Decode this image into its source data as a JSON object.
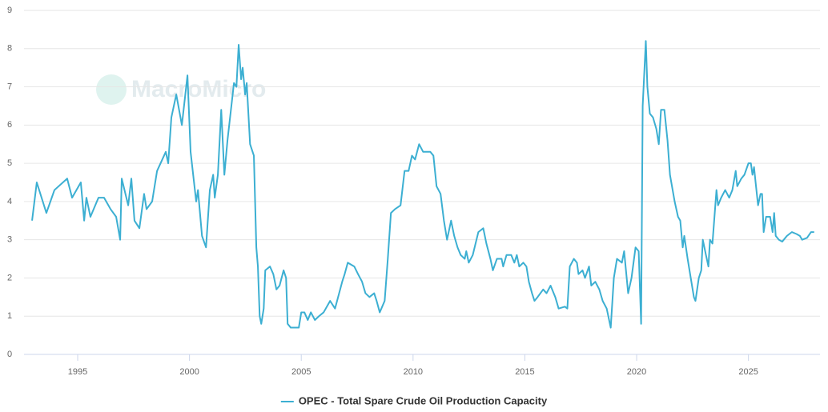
{
  "chart_data": {
    "type": "line",
    "watermark": "MacroMicro",
    "x": [
      1992.96,
      1993.17,
      1993.6,
      1993.78,
      1993.96,
      1994.53,
      1994.75,
      1995.14,
      1995.29,
      1995.39,
      1995.57,
      1995.93,
      1996.18,
      1996.47,
      1996.72,
      1996.9,
      1996.97,
      1997.26,
      1997.4,
      1997.54,
      1997.76,
      1997.97,
      1998.08,
      1998.33,
      1998.55,
      1998.94,
      1999.05,
      1999.19,
      1999.41,
      1999.66,
      1999.91,
      2000.05,
      2000.3,
      2000.38,
      2000.56,
      2000.74,
      2000.91,
      2001.06,
      2001.13,
      2001.27,
      2001.42,
      2001.56,
      2001.7,
      2001.99,
      2002.1,
      2002.2,
      2002.31,
      2002.38,
      2002.49,
      2002.56,
      2002.71,
      2002.88,
      2002.99,
      2003.06,
      2003.14,
      2003.21,
      2003.32,
      2003.39,
      2003.6,
      2003.75,
      2003.89,
      2004.03,
      2004.21,
      2004.32,
      2004.39,
      2004.53,
      2004.89,
      2005.0,
      2005.14,
      2005.29,
      2005.43,
      2005.61,
      2005.79,
      2006.0,
      2006.29,
      2006.51,
      2006.83,
      2006.94,
      2007.08,
      2007.37,
      2007.54,
      2007.72,
      2007.87,
      2008.05,
      2008.26,
      2008.37,
      2008.51,
      2008.73,
      2008.87,
      2009.01,
      2009.19,
      2009.44,
      2009.62,
      2009.8,
      2009.95,
      2010.09,
      2010.27,
      2010.45,
      2010.77,
      2010.91,
      2011.05,
      2011.23,
      2011.38,
      2011.52,
      2011.7,
      2011.84,
      2011.99,
      2012.13,
      2012.31,
      2012.38,
      2012.49,
      2012.67,
      2012.92,
      2013.14,
      2013.28,
      2013.46,
      2013.57,
      2013.75,
      2013.96,
      2014.03,
      2014.18,
      2014.39,
      2014.53,
      2014.64,
      2014.75,
      2014.93,
      2015.07,
      2015.18,
      2015.32,
      2015.43,
      2015.57,
      2015.82,
      2015.97,
      2016.15,
      2016.36,
      2016.51,
      2016.79,
      2016.9,
      2017.01,
      2017.19,
      2017.33,
      2017.4,
      2017.58,
      2017.69,
      2017.87,
      2017.97,
      2018.15,
      2018.33,
      2018.48,
      2018.66,
      2018.84,
      2018.98,
      2019.12,
      2019.34,
      2019.44,
      2019.62,
      2019.77,
      2019.95,
      2020.09,
      2020.2,
      2020.27,
      2020.41,
      2020.48,
      2020.59,
      2020.73,
      2020.88,
      2020.99,
      2021.09,
      2021.24,
      2021.38,
      2021.49,
      2021.7,
      2021.85,
      2021.95,
      2022.06,
      2022.13,
      2022.28,
      2022.42,
      2022.56,
      2022.63,
      2022.78,
      2022.89,
      2022.96,
      2023.1,
      2023.21,
      2023.28,
      2023.39,
      2023.57,
      2023.64,
      2023.78,
      2023.96,
      2024.14,
      2024.28,
      2024.43,
      2024.5,
      2024.68,
      2024.82,
      2025.0,
      2025.11,
      2025.18,
      2025.25,
      2025.32,
      2025.43,
      2025.54,
      2025.61,
      2025.68,
      2025.79,
      2025.97,
      2026.08,
      2026.15,
      2026.22,
      2026.36,
      2026.51,
      2026.72,
      2026.94,
      2027.15,
      2027.3,
      2027.4,
      2027.62,
      2027.8,
      2027.94
    ],
    "series": [
      {
        "name": "OPEC - Total Spare Crude Oil Production Capacity",
        "color": "#3cafd2",
        "values": [
          3.5,
          4.5,
          3.7,
          4.0,
          4.3,
          4.6,
          4.1,
          4.5,
          3.5,
          4.1,
          3.6,
          4.1,
          4.1,
          3.8,
          3.6,
          3.0,
          4.6,
          3.9,
          4.6,
          3.5,
          3.3,
          4.2,
          3.8,
          4.0,
          4.8,
          5.3,
          5.0,
          6.2,
          6.8,
          6.0,
          7.3,
          5.3,
          4.0,
          4.3,
          3.1,
          2.8,
          4.3,
          4.7,
          4.1,
          4.7,
          6.4,
          4.7,
          5.6,
          7.1,
          7.0,
          8.1,
          7.2,
          7.5,
          6.8,
          7.1,
          5.5,
          5.2,
          2.8,
          2.3,
          1.0,
          0.8,
          1.2,
          2.2,
          2.3,
          2.1,
          1.7,
          1.8,
          2.2,
          2.0,
          0.8,
          0.7,
          0.7,
          1.1,
          1.1,
          0.9,
          1.1,
          0.9,
          1.0,
          1.1,
          1.4,
          1.2,
          1.9,
          2.1,
          2.4,
          2.3,
          2.1,
          1.9,
          1.6,
          1.5,
          1.6,
          1.4,
          1.1,
          1.4,
          2.5,
          3.7,
          3.8,
          3.9,
          4.8,
          4.8,
          5.2,
          5.1,
          5.5,
          5.3,
          5.3,
          5.2,
          4.4,
          4.2,
          3.5,
          3.0,
          3.5,
          3.1,
          2.8,
          2.6,
          2.5,
          2.7,
          2.4,
          2.6,
          3.2,
          3.3,
          2.9,
          2.5,
          2.2,
          2.5,
          2.5,
          2.3,
          2.6,
          2.6,
          2.4,
          2.6,
          2.3,
          2.4,
          2.3,
          1.9,
          1.6,
          1.4,
          1.5,
          1.7,
          1.6,
          1.8,
          1.5,
          1.2,
          1.25,
          1.2,
          2.3,
          2.5,
          2.4,
          2.1,
          2.2,
          2.0,
          2.3,
          1.8,
          1.9,
          1.7,
          1.4,
          1.2,
          0.7,
          2.0,
          2.5,
          2.4,
          2.7,
          1.6,
          2.0,
          2.8,
          2.7,
          0.8,
          6.5,
          8.2,
          7.0,
          6.3,
          6.2,
          5.9,
          5.5,
          6.4,
          6.4,
          5.6,
          4.7,
          4.0,
          3.6,
          3.5,
          2.8,
          3.1,
          2.5,
          2.0,
          1.5,
          1.4,
          2.0,
          2.2,
          3.0,
          2.6,
          2.3,
          3.0,
          2.9,
          4.3,
          3.9,
          4.1,
          4.3,
          4.1,
          4.3,
          4.8,
          4.4,
          4.6,
          4.7,
          5.0,
          5.0,
          4.7,
          4.9,
          4.5,
          3.9,
          4.2,
          4.2,
          3.2,
          3.6,
          3.6,
          3.2,
          3.7,
          3.1,
          3.0,
          2.95,
          3.1,
          3.2,
          3.15,
          3.1,
          3.0,
          3.05,
          3.2,
          3.2
        ]
      }
    ],
    "xlim": [
      1992.6,
      2028.2
    ],
    "xticks": [
      1995,
      2000,
      2005,
      2010,
      2015,
      2020,
      2025
    ],
    "ylim": [
      0,
      9
    ],
    "yticks": [
      0,
      1,
      2,
      3,
      4,
      5,
      6,
      7,
      8,
      9
    ],
    "grid": true,
    "legend": "bottom"
  }
}
